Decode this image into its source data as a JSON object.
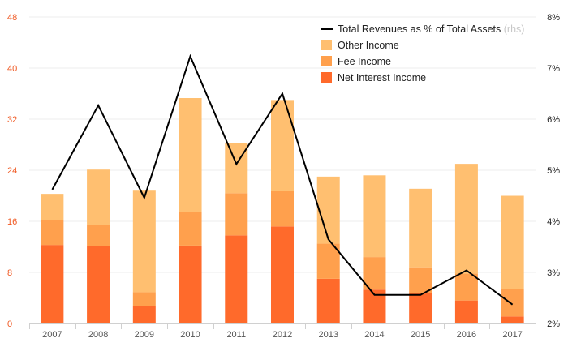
{
  "chart_data": {
    "type": "bar",
    "stacked": true,
    "categories": [
      "2007",
      "2008",
      "2009",
      "2010",
      "2011",
      "2012",
      "2013",
      "2014",
      "2015",
      "2016",
      "2017"
    ],
    "series": [
      {
        "name": "Net Interest Income",
        "values": [
          12.3,
          12.1,
          2.7,
          12.2,
          13.8,
          15.2,
          7.0,
          5.3,
          4.7,
          3.6,
          1.1
        ],
        "color": "#ff6a2b"
      },
      {
        "name": "Fee Income",
        "values": [
          3.9,
          3.3,
          2.2,
          5.2,
          6.6,
          5.5,
          5.5,
          5.1,
          4.1,
          4.2,
          4.3
        ],
        "color": "#ffa04d"
      },
      {
        "name": "Other Income",
        "values": [
          4.1,
          8.7,
          15.9,
          17.9,
          7.8,
          14.3,
          10.5,
          12.8,
          12.3,
          17.2,
          14.6
        ],
        "color": "#ffbf70"
      }
    ],
    "line": {
      "name": "Total Revenues as % of Total Assets",
      "suffix": "(rhs)",
      "values": [
        4.62,
        6.27,
        4.46,
        7.23,
        5.12,
        6.5,
        3.65,
        2.56,
        2.56,
        3.04,
        2.37
      ],
      "color": "#000000"
    },
    "y_left": {
      "min": 0,
      "max": 48,
      "ticks": [
        "0",
        "8",
        "16",
        "24",
        "32",
        "40",
        "48"
      ],
      "color": "#f05a24"
    },
    "y_right": {
      "min": 2,
      "max": 8,
      "ticks": [
        "2%",
        "3%",
        "4%",
        "5%",
        "6%",
        "7%",
        "8%"
      ]
    },
    "legend_position": "top-right"
  }
}
